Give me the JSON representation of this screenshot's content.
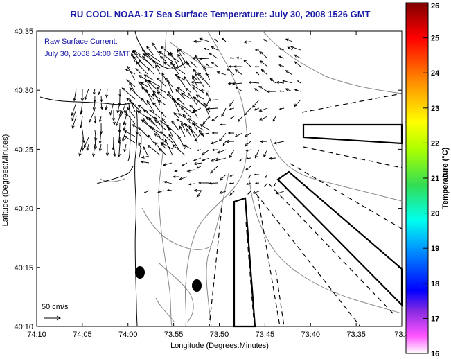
{
  "title": "RU COOL  NOAA-17  Sea Surface Temperature:  July 30, 2008 1526 GMT",
  "annotation": {
    "line1": "Raw Surface Current:",
    "line2": "July 30, 2008 14:00 GMT"
  },
  "scale": {
    "label": "50 cm/s"
  },
  "axes": {
    "xlabel": "Longitude (Degrees:Minutes)",
    "ylabel": "Latitude (Degrees:Minutes)",
    "xticks": [
      "74:10",
      "74:05",
      "74:00",
      "73:55",
      "73:50",
      "73:45",
      "73:40",
      "73:35",
      "73:3"
    ],
    "yticks": [
      "40:35",
      "40:30",
      "40:25",
      "40:20",
      "40:15",
      "40:10"
    ]
  },
  "colorbar": {
    "label": "Temperature (°C)",
    "ticks": [
      "26",
      "25",
      "24",
      "23",
      "22",
      "21",
      "20",
      "19",
      "18",
      "17",
      "16"
    ],
    "min": 16,
    "max": 26,
    "colors": [
      "#ffffff",
      "#ff44ff",
      "#8800ff",
      "#0000ff",
      "#00aaff",
      "#00ffcc",
      "#33ee33",
      "#ccff00",
      "#ffff00",
      "#ff9900",
      "#ff0000",
      "#880000"
    ]
  },
  "colors": {
    "text_blue": "#1a1aa6",
    "land_line": "#000000",
    "depth_contour": "#888888"
  }
}
